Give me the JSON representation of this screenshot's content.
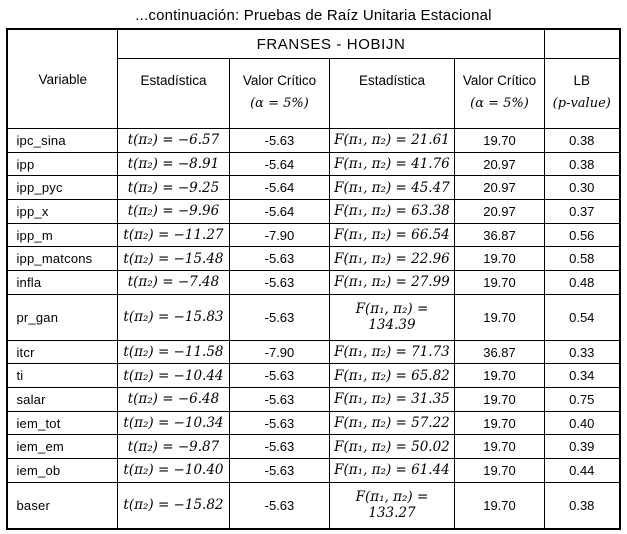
{
  "title": "...continuación: Pruebas de Raíz Unitaria Estacional",
  "table": {
    "group_header": "FRANSES - HOBIJN",
    "col_headers": {
      "variable": "Variable",
      "stat_t": "Estadística",
      "crit_t": "Valor Crítico",
      "crit_t_sub": "(α = 5%)",
      "stat_f": "Estadística",
      "crit_f": "Valor Crítico",
      "crit_f_sub": "(α = 5%)",
      "lb": "LB",
      "lb_sub": "(p-value)"
    },
    "rows": [
      {
        "variable": "ipc_sina",
        "stat_t": "t(π₂) = −6.57",
        "crit_t": "-5.63",
        "stat_f": "F(π₁, π₂) = 21.61",
        "crit_f": "19.70",
        "lb": "0.38"
      },
      {
        "variable": "ipp",
        "stat_t": "t(π₂) = −8.91",
        "crit_t": "-5.64",
        "stat_f": "F(π₁, π₂) = 41.76",
        "crit_f": "20.97",
        "lb": "0.38"
      },
      {
        "variable": "ipp_pyc",
        "stat_t": "t(π₂) = −9.25",
        "crit_t": "-5.64",
        "stat_f": "F(π₁, π₂) = 45.47",
        "crit_f": "20.97",
        "lb": "0.30"
      },
      {
        "variable": "ipp_x",
        "stat_t": "t(π₂) = −9.96",
        "crit_t": "-5.64",
        "stat_f": "F(π₁, π₂) = 63.38",
        "crit_f": "20.97",
        "lb": "0.37"
      },
      {
        "variable": "ipp_m",
        "stat_t": "t(π₂) = −11.27",
        "crit_t": "-7.90",
        "stat_f": "F(π₁, π₂) = 66.54",
        "crit_f": "36.87",
        "lb": "0.56"
      },
      {
        "variable": "ipp_matcons",
        "stat_t": "t(π₂) = −15.48",
        "crit_t": "-5.63",
        "stat_f": "F(π₁, π₂) = 22.96",
        "crit_f": "19.70",
        "lb": "0.58"
      },
      {
        "variable": "infla",
        "stat_t": "t(π₂) = −7.48",
        "crit_t": "-5.63",
        "stat_f": "F(π₁, π₂) = 27.99",
        "crit_f": "19.70",
        "lb": "0.48"
      },
      {
        "variable": "pr_gan",
        "stat_t": "t(π₂) = −15.83",
        "crit_t": "-5.63",
        "stat_f": "F(π₁, π₂) = 134.39",
        "crit_f": "19.70",
        "lb": "0.54"
      },
      {
        "variable": "itcr",
        "stat_t": "t(π₂) = −11.58",
        "crit_t": "-7.90",
        "stat_f": "F(π₁, π₂) = 71.73",
        "crit_f": "36.87",
        "lb": "0.33"
      },
      {
        "variable": "ti",
        "stat_t": "t(π₂) = −10.44",
        "crit_t": "-5.63",
        "stat_f": "F(π₁, π₂) = 65.82",
        "crit_f": "19.70",
        "lb": "0.34"
      },
      {
        "variable": "salar",
        "stat_t": "t(π₂) = −6.48",
        "crit_t": "-5.63",
        "stat_f": "F(π₁, π₂) = 31.35",
        "crit_f": "19.70",
        "lb": "0.75"
      },
      {
        "variable": "iem_tot",
        "stat_t": "t(π₂) = −10.34",
        "crit_t": "-5.63",
        "stat_f": "F(π₁, π₂) = 57.22",
        "crit_f": "19.70",
        "lb": "0.40"
      },
      {
        "variable": "iem_em",
        "stat_t": "t(π₂) = −9.87",
        "crit_t": "-5.63",
        "stat_f": "F(π₁, π₂) = 50.02",
        "crit_f": "19.70",
        "lb": "0.39"
      },
      {
        "variable": "iem_ob",
        "stat_t": "t(π₂) = −10.40",
        "crit_t": "-5.63",
        "stat_f": "F(π₁, π₂) = 61.44",
        "crit_f": "19.70",
        "lb": "0.44"
      },
      {
        "variable": "baser",
        "stat_t": "t(π₂) = −15.82",
        "crit_t": "-5.63",
        "stat_f": "F(π₁, π₂) = 133.27",
        "crit_f": "19.70",
        "lb": "0.38"
      }
    ]
  }
}
